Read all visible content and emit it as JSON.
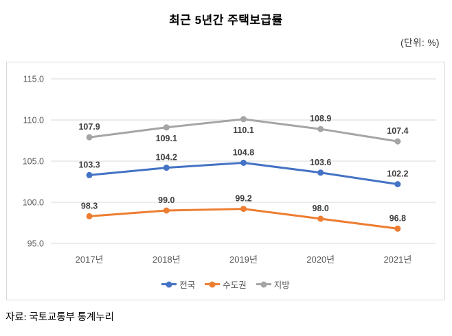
{
  "header": {
    "title": "최근 5년간 주택보급률",
    "unit_label": "(단위: %)"
  },
  "footer": {
    "source": "자료: 국토교통부 통계누리"
  },
  "chart_data": {
    "type": "line",
    "title": "최근 5년간 주택보급률",
    "unit": "%",
    "categories": [
      "2017년",
      "2018년",
      "2019년",
      "2020년",
      "2021년"
    ],
    "series": [
      {
        "name": "전국",
        "color": "#4472C4",
        "values": [
          103.3,
          104.2,
          104.8,
          103.6,
          102.2
        ],
        "label_offsets": [
          -11,
          -11,
          -11,
          -11,
          -11
        ]
      },
      {
        "name": "수도권",
        "color": "#ED7D31",
        "values": [
          98.3,
          99.0,
          99.2,
          98.0,
          96.8
        ],
        "label_offsets": [
          -11,
          -11,
          -11,
          -11,
          -11
        ]
      },
      {
        "name": "지방",
        "color": "#A5A5A5",
        "values": [
          107.9,
          109.1,
          110.1,
          108.9,
          107.4
        ],
        "label_offsets": [
          -11,
          20,
          20,
          -11,
          -11
        ]
      }
    ],
    "y_ticks": [
      95.0,
      100.0,
      105.0,
      110.0,
      115.0
    ],
    "ylim": [
      92.5,
      117.0
    ],
    "value_decimals": 1,
    "grid": "horizontal",
    "legend_position": "bottom",
    "colors": {
      "grid": "#D9D9D9",
      "border": "#D9D9D9",
      "axis_text": "#595959",
      "value_label": "#404040"
    }
  }
}
